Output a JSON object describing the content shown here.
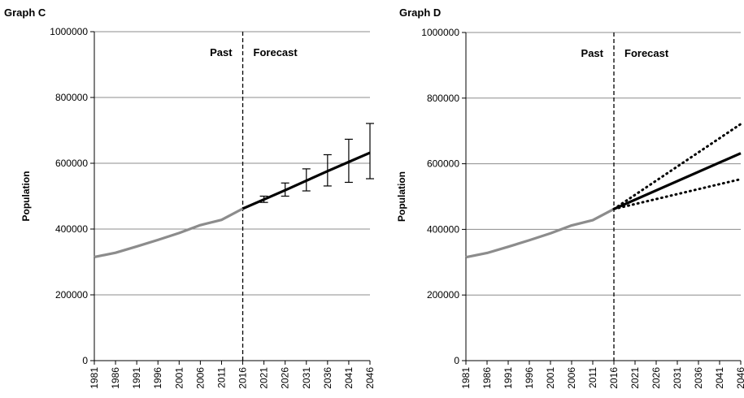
{
  "chart_data": [
    {
      "type": "line",
      "title": "Graph C",
      "ylabel": "Population",
      "xlabel": "",
      "ylim": [
        0,
        1000000
      ],
      "yticks": [
        0,
        200000,
        400000,
        600000,
        800000,
        1000000
      ],
      "x": [
        1981,
        1986,
        1991,
        1996,
        2001,
        2006,
        2011,
        2016,
        2021,
        2026,
        2031,
        2036,
        2041,
        2046
      ],
      "divider_x": 2016,
      "annotations": {
        "past": "Past",
        "forecast": "Forecast"
      },
      "grid": true,
      "series": [
        {
          "role": "past",
          "color": "#8c8c8c",
          "x": [
            1981,
            1986,
            1991,
            1996,
            2001,
            2006,
            2011,
            2016
          ],
          "y": [
            315000,
            328000,
            347000,
            367000,
            388000,
            412000,
            428000,
            462000
          ]
        },
        {
          "role": "forecast",
          "color": "#000000",
          "x": [
            2016,
            2021,
            2026,
            2031,
            2036,
            2041,
            2046
          ],
          "y": [
            462000,
            490000,
            518000,
            547000,
            576000,
            604000,
            632000
          ],
          "error_low": [
            462000,
            481000,
            500000,
            516000,
            531000,
            542000,
            553000
          ],
          "error_high": [
            462000,
            500000,
            540000,
            583000,
            626000,
            673000,
            721000
          ]
        }
      ]
    },
    {
      "type": "line",
      "title": "Graph D",
      "ylabel": "Population",
      "xlabel": "",
      "ylim": [
        0,
        1000000
      ],
      "yticks": [
        0,
        200000,
        400000,
        600000,
        800000,
        1000000
      ],
      "x": [
        1981,
        1986,
        1991,
        1996,
        2001,
        2006,
        2011,
        2016,
        2021,
        2026,
        2031,
        2036,
        2041,
        2046
      ],
      "divider_x": 2016,
      "annotations": {
        "past": "Past",
        "forecast": "Forecast"
      },
      "grid": true,
      "series": [
        {
          "role": "past",
          "color": "#8c8c8c",
          "x": [
            1981,
            1986,
            1991,
            1996,
            2001,
            2006,
            2011,
            2016
          ],
          "y": [
            315000,
            328000,
            347000,
            367000,
            388000,
            412000,
            428000,
            462000
          ]
        },
        {
          "role": "forecast",
          "color": "#000000",
          "x": [
            2016,
            2046
          ],
          "y": [
            462000,
            632000
          ]
        },
        {
          "role": "upper-bound",
          "color": "#000000",
          "dashed": true,
          "x": [
            2016,
            2046
          ],
          "y": [
            462000,
            721000
          ]
        },
        {
          "role": "lower-bound",
          "color": "#000000",
          "dashed": true,
          "x": [
            2016,
            2046
          ],
          "y": [
            462000,
            553000
          ]
        }
      ]
    }
  ]
}
